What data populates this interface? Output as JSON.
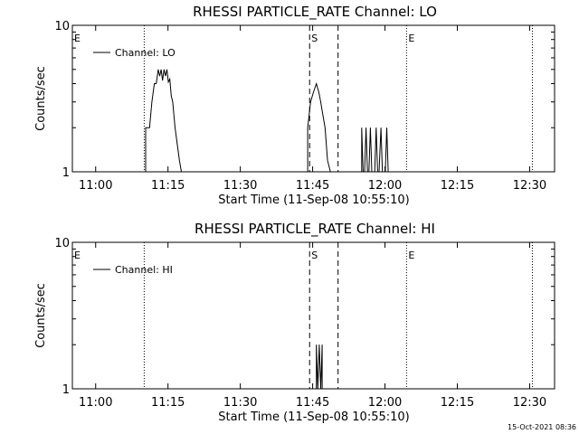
{
  "footer": {
    "timestamp": "15-Oct-2021 08:36"
  },
  "chart_data": [
    {
      "type": "line",
      "title": "RHESSI PARTICLE_RATE Channel: LO",
      "xlabel": "Start Time (11-Sep-08 10:55:10)",
      "ylabel": "Counts/sec",
      "x_unit": "minutes after 10:55:10",
      "xlim": [
        0,
        100
      ],
      "ylim": [
        1,
        10
      ],
      "yscale": "log",
      "x_ticks": [
        {
          "label": "11:00",
          "value": 4.83
        },
        {
          "label": "11:15",
          "value": 19.83
        },
        {
          "label": "11:30",
          "value": 34.83
        },
        {
          "label": "11:45",
          "value": 49.83
        },
        {
          "label": "12:00",
          "value": 64.83
        },
        {
          "label": "12:15",
          "value": 79.83
        },
        {
          "label": "12:30",
          "value": 94.83
        }
      ],
      "y_ticks": [
        {
          "label": "1",
          "value": 1
        },
        {
          "label": "10",
          "value": 10
        }
      ],
      "legend": {
        "text": "Channel: LO",
        "placement": "top-left"
      },
      "series": [
        {
          "name": "Channel: LO",
          "x": [
            0,
            15.2,
            15.2,
            16.0,
            16.5,
            17.0,
            17.4,
            17.8,
            18.1,
            18.4,
            18.7,
            19.0,
            19.3,
            19.6,
            19.9,
            20.2,
            20.5,
            20.8,
            21.3,
            21.8,
            22.2,
            22.6,
            22.6,
            48.8,
            48.8,
            49.4,
            50.0,
            50.6,
            51.1,
            51.5,
            51.9,
            52.4,
            52.9,
            53.5,
            53.5,
            60.0,
            60.0,
            60.3,
            60.6,
            60.9,
            61.2,
            61.5,
            61.8,
            62.1,
            62.4,
            62.7,
            63.0,
            63.3,
            63.6,
            64.0,
            64.3,
            64.6,
            64.9,
            65.2,
            65.5,
            65.8,
            100
          ],
          "y": [
            1,
            1,
            2,
            2,
            3,
            4,
            4,
            5,
            4.5,
            5,
            4.2,
            5,
            4.5,
            5,
            4.1,
            4.3,
            3.3,
            3,
            2,
            1.5,
            1.2,
            1,
            1,
            1,
            2,
            3,
            3.5,
            4,
            3.5,
            3,
            2.5,
            2,
            1.2,
            1,
            1,
            1,
            2,
            1,
            1,
            2,
            1,
            1,
            2,
            1,
            1,
            1,
            2,
            1,
            1,
            2,
            1,
            1,
            1,
            2,
            1,
            1,
            1
          ]
        }
      ],
      "markers": [
        {
          "label": "E",
          "x": 0,
          "style": "solid"
        },
        {
          "label": "S",
          "x": 49.2,
          "style": "dashed"
        },
        {
          "label": "",
          "x": 55.1,
          "style": "dashed"
        },
        {
          "label": "E",
          "x": 69.3,
          "style": "dotted"
        },
        {
          "label": "",
          "x": 14.9,
          "style": "dotted"
        },
        {
          "label": "",
          "x": 95.4,
          "style": "dotted"
        }
      ]
    },
    {
      "type": "line",
      "title": "RHESSI PARTICLE_RATE Channel: HI",
      "xlabel": "Start Time (11-Sep-08 10:55:10)",
      "ylabel": "Counts/sec",
      "x_unit": "minutes after 10:55:10",
      "xlim": [
        0,
        100
      ],
      "ylim": [
        1,
        10
      ],
      "yscale": "log",
      "x_ticks": [
        {
          "label": "11:00",
          "value": 4.83
        },
        {
          "label": "11:15",
          "value": 19.83
        },
        {
          "label": "11:30",
          "value": 34.83
        },
        {
          "label": "11:45",
          "value": 49.83
        },
        {
          "label": "12:00",
          "value": 64.83
        },
        {
          "label": "12:15",
          "value": 79.83
        },
        {
          "label": "12:30",
          "value": 94.83
        }
      ],
      "y_ticks": [
        {
          "label": "1",
          "value": 1
        },
        {
          "label": "10",
          "value": 10
        }
      ],
      "legend": {
        "text": "Channel: HI",
        "placement": "top-left"
      },
      "series": [
        {
          "name": "Channel: HI",
          "x": [
            0,
            50.6,
            50.6,
            50.9,
            51.2,
            51.5,
            51.8,
            51.8,
            100
          ],
          "y": [
            1,
            1,
            2,
            1,
            2,
            1,
            2,
            1,
            1
          ]
        }
      ],
      "markers": [
        {
          "label": "E",
          "x": 0,
          "style": "solid"
        },
        {
          "label": "S",
          "x": 49.2,
          "style": "dashed"
        },
        {
          "label": "",
          "x": 55.1,
          "style": "dashed"
        },
        {
          "label": "E",
          "x": 69.3,
          "style": "dotted"
        },
        {
          "label": "",
          "x": 14.9,
          "style": "dotted"
        },
        {
          "label": "",
          "x": 95.4,
          "style": "dotted"
        }
      ]
    }
  ]
}
